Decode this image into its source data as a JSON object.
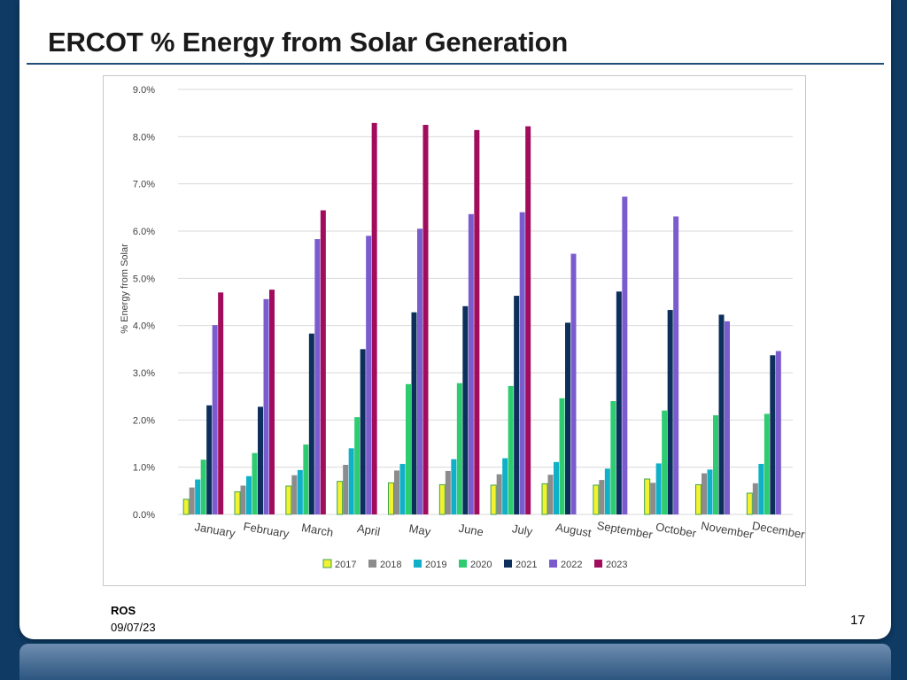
{
  "slide": {
    "title": "ERCOT % Energy from Solar Generation",
    "footer_org": "ROS",
    "footer_date": "09/07/23",
    "page_number": "17"
  },
  "chart_data": {
    "type": "bar",
    "ylabel": "% Energy from Solar",
    "ylim": [
      0,
      9.0
    ],
    "yticks": [
      "0.0%",
      "1.0%",
      "2.0%",
      "3.0%",
      "4.0%",
      "5.0%",
      "6.0%",
      "7.0%",
      "8.0%",
      "9.0%"
    ],
    "grid": true,
    "legend_position": "bottom",
    "categories": [
      "January",
      "February",
      "March",
      "April",
      "May",
      "June",
      "July",
      "August",
      "September",
      "October",
      "November",
      "December"
    ],
    "series": [
      {
        "name": "2017",
        "color": "#f2f230",
        "stroke": "#3fa34d",
        "values": [
          0.32,
          0.48,
          0.6,
          0.7,
          0.67,
          0.63,
          0.62,
          0.65,
          0.62,
          0.75,
          0.63,
          0.45
        ]
      },
      {
        "name": "2018",
        "color": "#8c8c8c",
        "stroke": "",
        "values": [
          0.57,
          0.61,
          0.83,
          1.05,
          0.93,
          0.92,
          0.85,
          0.84,
          0.73,
          0.67,
          0.87,
          0.66
        ]
      },
      {
        "name": "2019",
        "color": "#0fb0c8",
        "stroke": "",
        "values": [
          0.74,
          0.81,
          0.94,
          1.4,
          1.07,
          1.17,
          1.19,
          1.11,
          0.97,
          1.08,
          0.95,
          1.07
        ]
      },
      {
        "name": "2020",
        "color": "#2ecc71",
        "stroke": "",
        "values": [
          1.16,
          1.3,
          1.48,
          2.06,
          2.76,
          2.78,
          2.72,
          2.46,
          2.4,
          2.2,
          2.1,
          2.13
        ]
      },
      {
        "name": "2021",
        "color": "#0c2f5c",
        "stroke": "",
        "values": [
          2.31,
          2.28,
          3.83,
          3.5,
          4.28,
          4.41,
          4.63,
          4.06,
          4.72,
          4.33,
          4.23,
          3.37
        ]
      },
      {
        "name": "2022",
        "color": "#7b5ccf",
        "stroke": "",
        "values": [
          4.01,
          4.56,
          5.83,
          5.9,
          6.05,
          6.36,
          6.4,
          5.52,
          6.73,
          6.31,
          4.09,
          3.46
        ]
      },
      {
        "name": "2023",
        "color": "#a10d5c",
        "stroke": "",
        "values": [
          4.7,
          4.76,
          6.44,
          8.29,
          8.25,
          8.14,
          8.22,
          null,
          null,
          null,
          null,
          null
        ]
      }
    ]
  }
}
